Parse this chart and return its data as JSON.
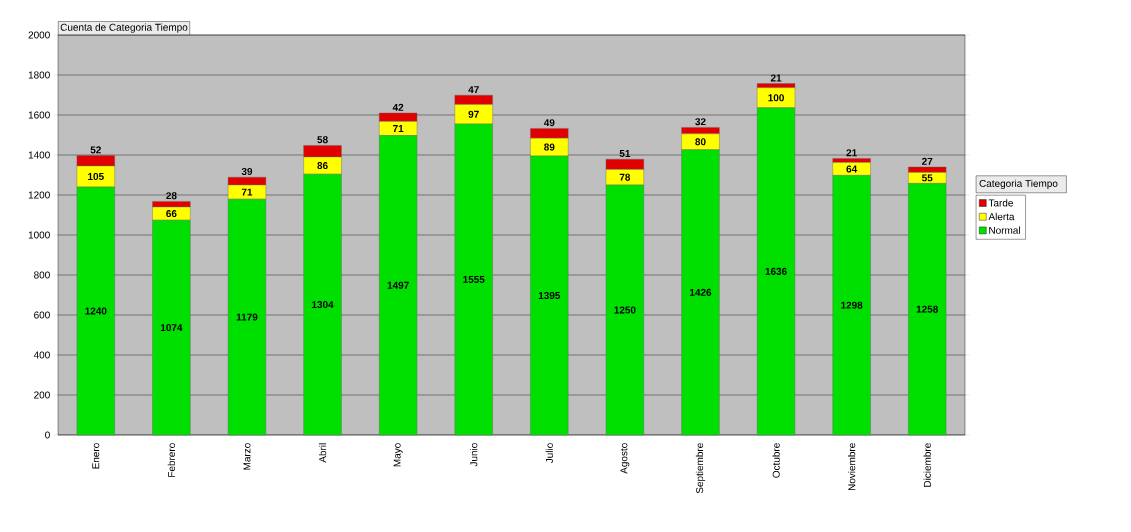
{
  "chart_data": {
    "type": "bar",
    "stacked": true,
    "title": "Cuenta de Categoria Tiempo",
    "legend_title": "Categoria Tiempo",
    "categories": [
      "Enero",
      "Febrero",
      "Marzo",
      "Abril",
      "Mayo",
      "Junio",
      "Julio",
      "Agosto",
      "Septiembre",
      "Octubre",
      "Noviembre",
      "Diciembre"
    ],
    "series": [
      {
        "name": "Normal",
        "color": "#00e000",
        "values": [
          1240,
          1074,
          1179,
          1304,
          1497,
          1555,
          1395,
          1250,
          1426,
          1636,
          1298,
          1258
        ]
      },
      {
        "name": "Alerta",
        "color": "#ffff00",
        "values": [
          105,
          66,
          71,
          86,
          71,
          97,
          89,
          78,
          80,
          100,
          64,
          55
        ]
      },
      {
        "name": "Tarde",
        "color": "#e00000",
        "values": [
          52,
          28,
          39,
          58,
          42,
          47,
          49,
          51,
          32,
          21,
          21,
          27
        ]
      }
    ],
    "ylim": [
      0,
      2000
    ],
    "yticks": [
      0,
      200,
      400,
      600,
      800,
      1000,
      1200,
      1400,
      1600,
      1800,
      2000
    ],
    "grid": "y",
    "legend": "right",
    "data_labels": true
  }
}
